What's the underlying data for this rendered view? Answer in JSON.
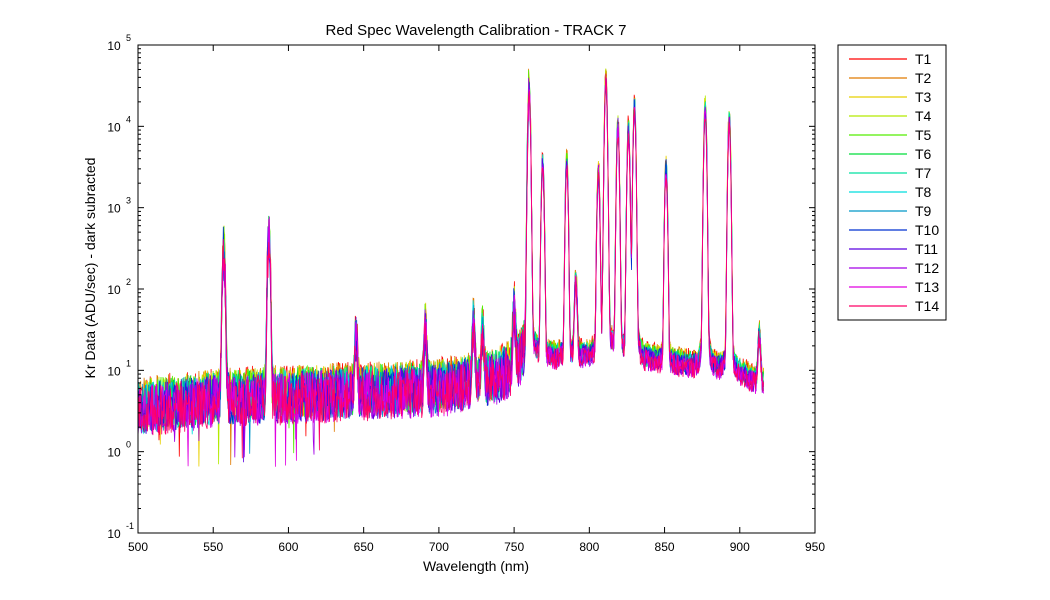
{
  "chart_data": {
    "type": "line",
    "title": "Red Spec Wavelength Calibration - TRACK 7",
    "xlabel": "Wavelength (nm)",
    "ylabel": "Kr Data (ADU/sec) - dark subracted",
    "yscale": "log",
    "xlim": [
      500,
      950
    ],
    "ylim": [
      0.1,
      100000
    ],
    "grid": false,
    "legend_position": "outside-right",
    "x_ticks": [
      500,
      550,
      600,
      650,
      700,
      750,
      800,
      850,
      900,
      950
    ],
    "y_ticks": [
      {
        "value": 0.1,
        "base": "10",
        "exp": "-1"
      },
      {
        "value": 1,
        "base": "10",
        "exp": "0"
      },
      {
        "value": 10,
        "base": "10",
        "exp": "1"
      },
      {
        "value": 100,
        "base": "10",
        "exp": "2"
      },
      {
        "value": 1000,
        "base": "10",
        "exp": "3"
      },
      {
        "value": 10000,
        "base": "10",
        "exp": "4"
      },
      {
        "value": 100000,
        "base": "10",
        "exp": "5"
      }
    ],
    "x_range": [
      500,
      916
    ],
    "baseline": [
      [
        500,
        3.5
      ],
      [
        550,
        4.5
      ],
      [
        600,
        5
      ],
      [
        650,
        5.5
      ],
      [
        700,
        6
      ],
      [
        740,
        8.5
      ],
      [
        755,
        12
      ],
      [
        760,
        15
      ],
      [
        800,
        15
      ],
      [
        850,
        13
      ],
      [
        900,
        9
      ],
      [
        916,
        7
      ]
    ],
    "peaks": [
      {
        "x": 557,
        "y": 320
      },
      {
        "x": 587,
        "y": 460
      },
      {
        "x": 645,
        "y": 22
      },
      {
        "x": 691,
        "y": 25
      },
      {
        "x": 723,
        "y": 30
      },
      {
        "x": 729,
        "y": 23
      },
      {
        "x": 750,
        "y": 45
      },
      {
        "x": 760,
        "y": 28000
      },
      {
        "x": 769,
        "y": 3700
      },
      {
        "x": 785,
        "y": 3800
      },
      {
        "x": 791,
        "y": 120
      },
      {
        "x": 806,
        "y": 2800
      },
      {
        "x": 811,
        "y": 38000
      },
      {
        "x": 819,
        "y": 10000
      },
      {
        "x": 826,
        "y": 9000
      },
      {
        "x": 830,
        "y": 18000
      },
      {
        "x": 851,
        "y": 3200
      },
      {
        "x": 877,
        "y": 17000
      },
      {
        "x": 893,
        "y": 12000
      },
      {
        "x": 913,
        "y": 20
      }
    ],
    "series": [
      {
        "name": "T1",
        "color": "#ff0000"
      },
      {
        "name": "T2",
        "color": "#e07a00"
      },
      {
        "name": "T3",
        "color": "#e8d000"
      },
      {
        "name": "T4",
        "color": "#b4ea00"
      },
      {
        "name": "T5",
        "color": "#55ee00"
      },
      {
        "name": "T6",
        "color": "#00dd3a"
      },
      {
        "name": "T7",
        "color": "#00e0a0"
      },
      {
        "name": "T8",
        "color": "#00dede"
      },
      {
        "name": "T9",
        "color": "#0096c8"
      },
      {
        "name": "T10",
        "color": "#0030d0"
      },
      {
        "name": "T11",
        "color": "#5a00e0"
      },
      {
        "name": "T12",
        "color": "#a400e8"
      },
      {
        "name": "T13",
        "color": "#e000e0"
      },
      {
        "name": "T14",
        "color": "#ff0066"
      }
    ]
  }
}
